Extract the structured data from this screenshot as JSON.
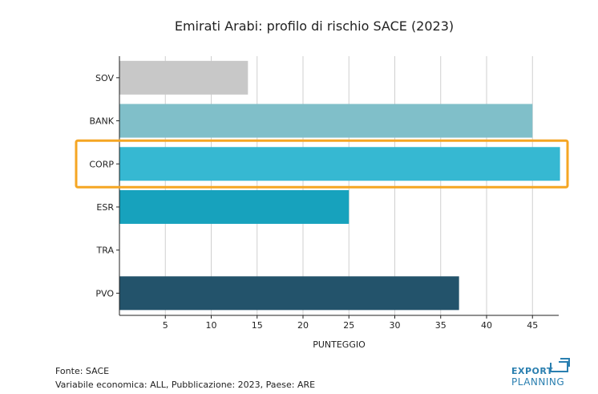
{
  "chart_data": {
    "type": "bar",
    "orientation": "horizontal",
    "title": "Emirati Arabi: profilo di rischio SACE (2023)",
    "xlabel": "PUNTEGGIO",
    "ylabel": "",
    "xlim": [
      0,
      48
    ],
    "x_ticks": [
      5,
      10,
      15,
      20,
      25,
      30,
      35,
      40,
      45
    ],
    "grid": "vertical",
    "categories": [
      "SOV",
      "BANK",
      "CORP",
      "ESR",
      "TRA",
      "PVO"
    ],
    "values": [
      14,
      45,
      48,
      25,
      null,
      37
    ],
    "colors": [
      "#c8c8c8",
      "#80bfc9",
      "#36b8d2",
      "#17a2bd",
      "#ffffff",
      "#23536b"
    ],
    "highlight": {
      "category": "CORP",
      "color": "#f5a623"
    }
  },
  "footer": {
    "source": "Fonte: SACE",
    "note": "Variabile economica: ALL, Pubblicazione: 2023, Paese: ARE"
  },
  "logo": {
    "line1": "EXPORT",
    "line2": "PLANNING",
    "color": "#2a7fb0"
  }
}
